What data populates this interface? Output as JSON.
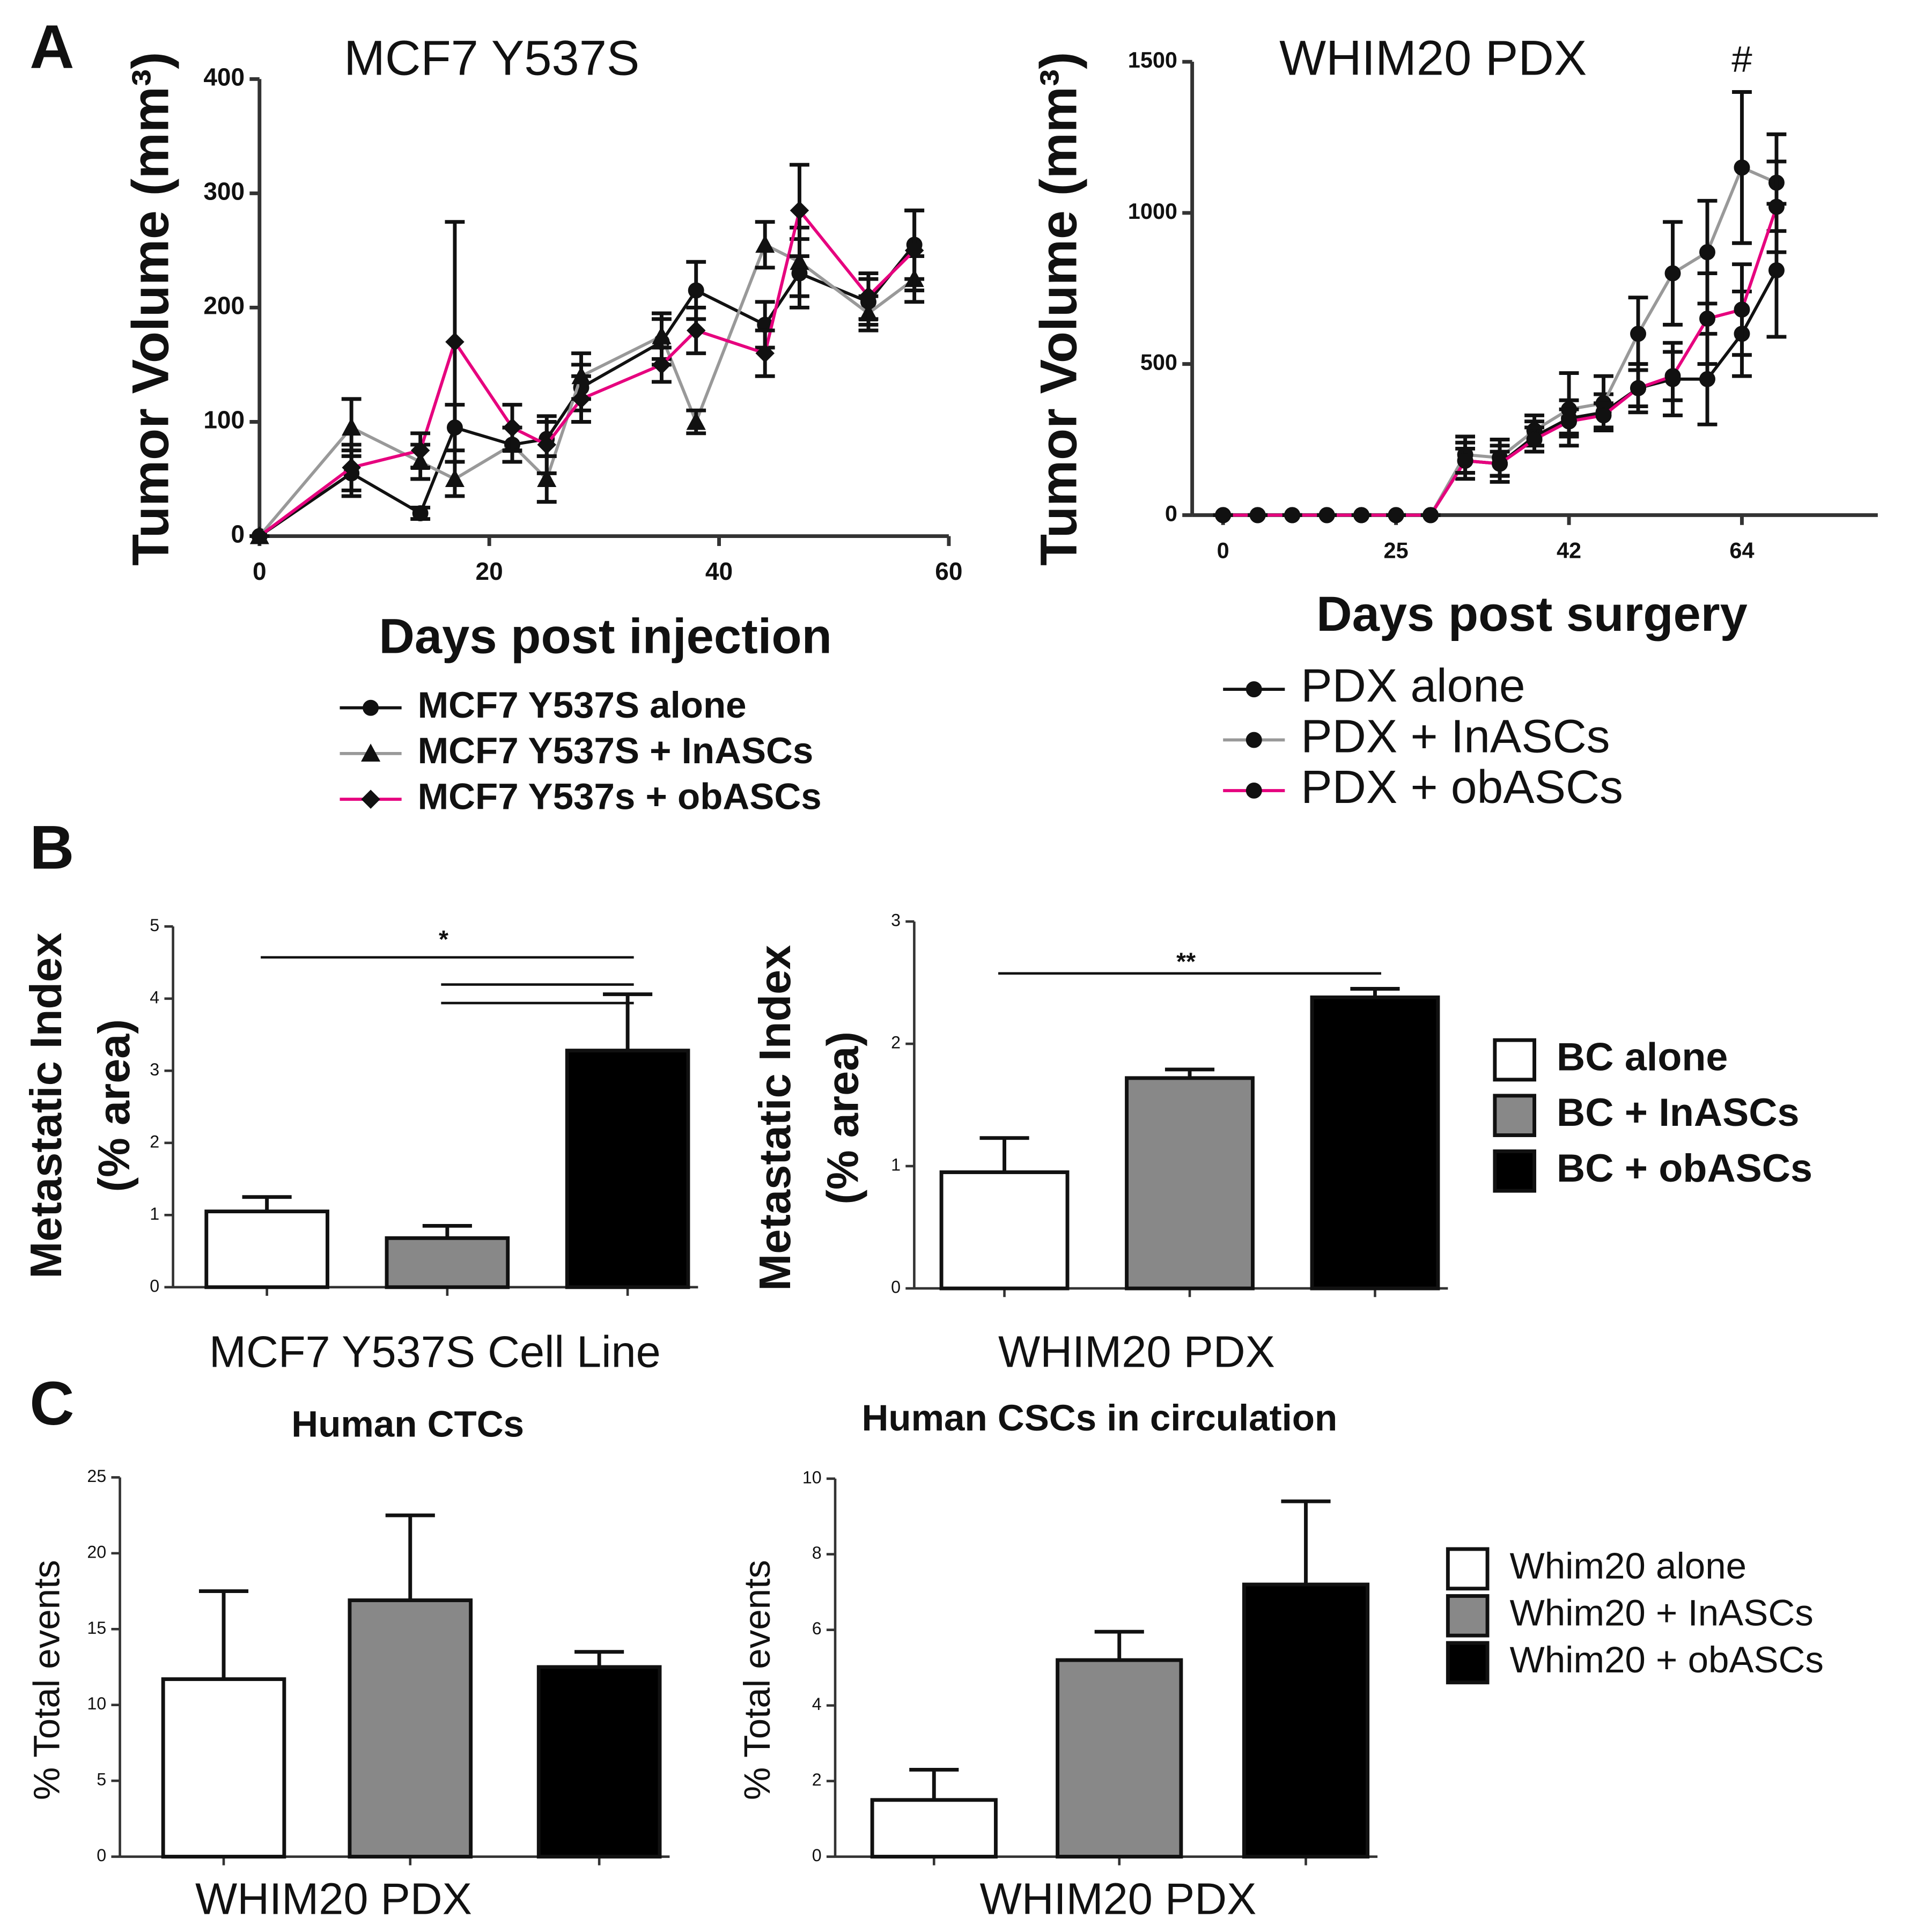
{
  "chart_data": [
    {
      "type": "line",
      "panel": "A",
      "title": "MCF7 Y537S",
      "y_label": "Tumor Volume (mm³)",
      "x_label": "Days post injection",
      "x": [
        0,
        8,
        14,
        17,
        22,
        25,
        28,
        35,
        38,
        44,
        47,
        53,
        57
      ],
      "xlim": [
        0,
        60
      ],
      "xticks": [
        0,
        20,
        40,
        60
      ],
      "ylim": [
        0,
        400
      ],
      "yticks": [
        0,
        100,
        200,
        300,
        400
      ],
      "series": [
        {
          "name": "MCF7 Y537S alone",
          "color": "#111111",
          "marker": "circle",
          "values": [
            0,
            55,
            20,
            95,
            80,
            85,
            130,
            170,
            215,
            185,
            230,
            205,
            255
          ],
          "errors": [
            0,
            20,
            5,
            20,
            15,
            15,
            20,
            20,
            25,
            20,
            30,
            20,
            30
          ]
        },
        {
          "name": "MCF7 Y537S + InASCs",
          "color": "#999999",
          "marker": "triangle",
          "values": [
            0,
            95,
            65,
            50,
            80,
            50,
            140,
            175,
            100,
            255,
            240,
            195,
            225
          ],
          "errors": [
            0,
            25,
            15,
            15,
            15,
            20,
            20,
            20,
            10,
            20,
            30,
            15,
            20
          ]
        },
        {
          "name": "MCF7 Y537s + obASCs",
          "color": "#e6007e",
          "marker": "diamond",
          "values": [
            0,
            60,
            75,
            170,
            95,
            80,
            120,
            150,
            180,
            160,
            285,
            210,
            250
          ],
          "errors": [
            0,
            20,
            15,
            105,
            20,
            25,
            20,
            15,
            20,
            20,
            40,
            20,
            35
          ]
        }
      ]
    },
    {
      "type": "line",
      "title": "WHIM20 PDX",
      "y_label": "Tumor Volume (mm³)",
      "x_label": "Days post surgery",
      "annotations": [
        "#"
      ],
      "categories": [
        "0",
        null,
        null,
        null,
        null,
        "25",
        null,
        null,
        null,
        null,
        "42",
        null,
        null,
        null,
        null,
        "64",
        null
      ],
      "ylim": [
        0,
        1500
      ],
      "yticks": [
        0,
        500,
        1000,
        1500
      ],
      "series": [
        {
          "name": "PDX alone",
          "color": "#111111",
          "marker": "circle",
          "values": [
            0,
            0,
            0,
            0,
            0,
            0,
            0,
            180,
            170,
            260,
            320,
            340,
            420,
            450,
            450,
            600,
            810
          ],
          "errors": [
            0,
            0,
            0,
            0,
            0,
            0,
            0,
            60,
            60,
            50,
            60,
            60,
            80,
            120,
            150,
            140,
            220
          ]
        },
        {
          "name": "PDX + InASCs",
          "color": "#999999",
          "marker": "circle",
          "values": [
            0,
            0,
            0,
            0,
            0,
            0,
            0,
            200,
            190,
            280,
            350,
            370,
            600,
            800,
            870,
            1150,
            1100
          ],
          "errors": [
            0,
            0,
            0,
            0,
            0,
            0,
            0,
            60,
            60,
            50,
            120,
            90,
            120,
            170,
            170,
            250,
            160
          ]
        },
        {
          "name": "PDX + obASCs",
          "color": "#e6007e",
          "marker": "circle",
          "values": [
            0,
            0,
            0,
            0,
            0,
            0,
            0,
            180,
            170,
            250,
            310,
            330,
            420,
            460,
            650,
            680,
            1020
          ],
          "errors": [
            0,
            0,
            0,
            0,
            0,
            0,
            0,
            40,
            40,
            40,
            40,
            40,
            60,
            80,
            150,
            150,
            150
          ]
        }
      ]
    },
    {
      "type": "bar",
      "panel": "B",
      "y_label": [
        "Metastatic Index",
        "(% area)"
      ],
      "x_label": "MCF7 Y537S Cell Line",
      "annotations": [
        "*"
      ],
      "ylim": [
        0,
        5
      ],
      "yticks": [
        0,
        1,
        2,
        3,
        4,
        5
      ],
      "series": [
        {
          "color": "#ffffff",
          "values": [
            1.05
          ],
          "errors": [
            0.2
          ]
        },
        {
          "color": "#888888",
          "values": [
            0.68
          ],
          "errors": [
            0.17
          ]
        },
        {
          "color": "#000000",
          "values": [
            3.28
          ],
          "errors": [
            0.78
          ]
        }
      ]
    },
    {
      "type": "bar",
      "y_label": [
        "Metastatic Index",
        "(% area)"
      ],
      "x_label": "WHIM20 PDX",
      "annotations": [
        "**"
      ],
      "ylim": [
        0,
        3
      ],
      "yticks": [
        0,
        1,
        2,
        3
      ],
      "series": [
        {
          "name": "BC alone",
          "color": "#ffffff",
          "values": [
            0.95
          ],
          "errors": [
            0.28
          ]
        },
        {
          "name": "BC + InASCs",
          "color": "#888888",
          "values": [
            1.72
          ],
          "errors": [
            0.07
          ]
        },
        {
          "name": "BC + obASCs",
          "color": "#000000",
          "values": [
            2.38
          ],
          "errors": [
            0.07
          ]
        }
      ]
    },
    {
      "type": "bar",
      "panel": "C",
      "title": "Human CTCs",
      "y_label": [
        "% Total events"
      ],
      "x_label": "WHIM20 PDX",
      "ylim": [
        0,
        25
      ],
      "yticks": [
        0,
        5,
        10,
        15,
        20,
        25
      ],
      "series": [
        {
          "color": "#ffffff",
          "values": [
            11.7
          ],
          "errors": [
            5.8
          ]
        },
        {
          "color": "#888888",
          "values": [
            16.9
          ],
          "errors": [
            5.6
          ]
        },
        {
          "color": "#000000",
          "values": [
            12.5
          ],
          "errors": [
            1.0
          ]
        }
      ]
    },
    {
      "type": "bar",
      "title": "Human CSCs in circulation",
      "y_label": [
        "% Total events"
      ],
      "x_label": "WHIM20 PDX",
      "ylim": [
        0,
        10
      ],
      "yticks": [
        0,
        2,
        4,
        6,
        8,
        10
      ],
      "series": [
        {
          "name": "Whim20 alone",
          "color": "#ffffff",
          "values": [
            1.5
          ],
          "errors": [
            0.8
          ]
        },
        {
          "name": "Whim20 + InASCs",
          "color": "#888888",
          "values": [
            5.2
          ],
          "errors": [
            0.75
          ]
        },
        {
          "name": "Whim20 + obASCs",
          "color": "#000000",
          "values": [
            7.2
          ],
          "errors": [
            2.2
          ]
        }
      ]
    }
  ]
}
